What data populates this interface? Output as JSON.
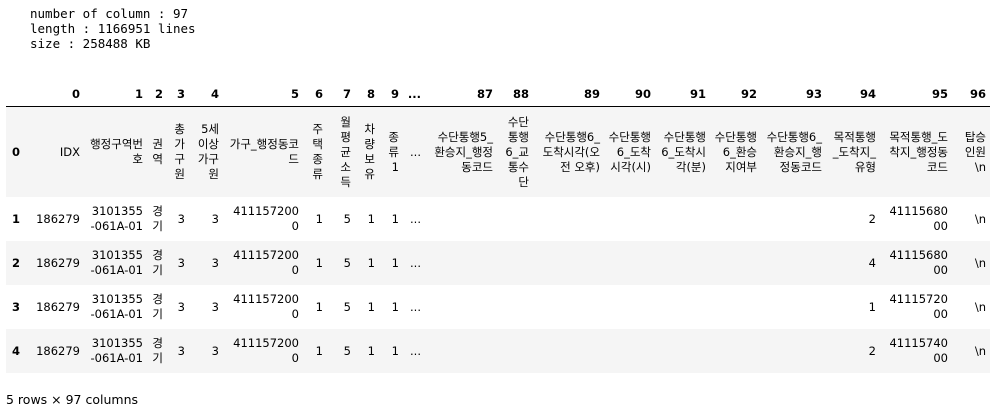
{
  "output_lines": [
    "number of column : 97",
    "length : 1166951 lines",
    "size : 258488 KB"
  ],
  "table": {
    "columns": [
      "",
      "0",
      "1",
      "2",
      "3",
      "4",
      "5",
      "6",
      "7",
      "8",
      "9",
      "...",
      "87",
      "88",
      "89",
      "90",
      "91",
      "92",
      "93",
      "94",
      "95",
      "96"
    ],
    "header_row": {
      "index": "0",
      "cells": [
        "IDX",
        "행정구역번호",
        "권역",
        "총가구원",
        "5세이상가구원",
        "가구_행정동코드",
        "주택종류",
        "월평균소득",
        "차량보유",
        "종류1",
        "...",
        "수단통행5_환승지_행정동코드",
        "수단통행6_교통수단",
        "수단통행6_도착시각(오전 오후)",
        "수단통행6_도착시각(시)",
        "수단통행6_도착시각(분)",
        "수단통행6_환승지여부",
        "수단통행6_환승지_행정동코드",
        "목적통행_도착지_유형",
        "목적통행_도착지_행정동코드",
        "탑승인원\\n"
      ]
    },
    "rows": [
      {
        "index": "1",
        "cells": [
          "186279",
          "3101355-061A-01",
          "경기",
          "3",
          "3",
          "4111572000",
          "1",
          "5",
          "1",
          "1",
          "...",
          "",
          "",
          "",
          "",
          "",
          "",
          "",
          "2",
          "4111568000",
          "\\n"
        ]
      },
      {
        "index": "2",
        "cells": [
          "186279",
          "3101355-061A-01",
          "경기",
          "3",
          "3",
          "4111572000",
          "1",
          "5",
          "1",
          "1",
          "...",
          "",
          "",
          "",
          "",
          "",
          "",
          "",
          "4",
          "4111568000",
          "\\n"
        ]
      },
      {
        "index": "3",
        "cells": [
          "186279",
          "3101355-061A-01",
          "경기",
          "3",
          "3",
          "4111572000",
          "1",
          "5",
          "1",
          "1",
          "...",
          "",
          "",
          "",
          "",
          "",
          "",
          "",
          "1",
          "4111572000",
          "\\n"
        ]
      },
      {
        "index": "4",
        "cells": [
          "186279",
          "3101355-061A-01",
          "경기",
          "3",
          "3",
          "4111572000",
          "1",
          "5",
          "1",
          "1",
          "...",
          "",
          "",
          "",
          "",
          "",
          "",
          "",
          "2",
          "4111574000",
          "\\n"
        ]
      }
    ]
  },
  "footer": "5 rows × 97 columns"
}
